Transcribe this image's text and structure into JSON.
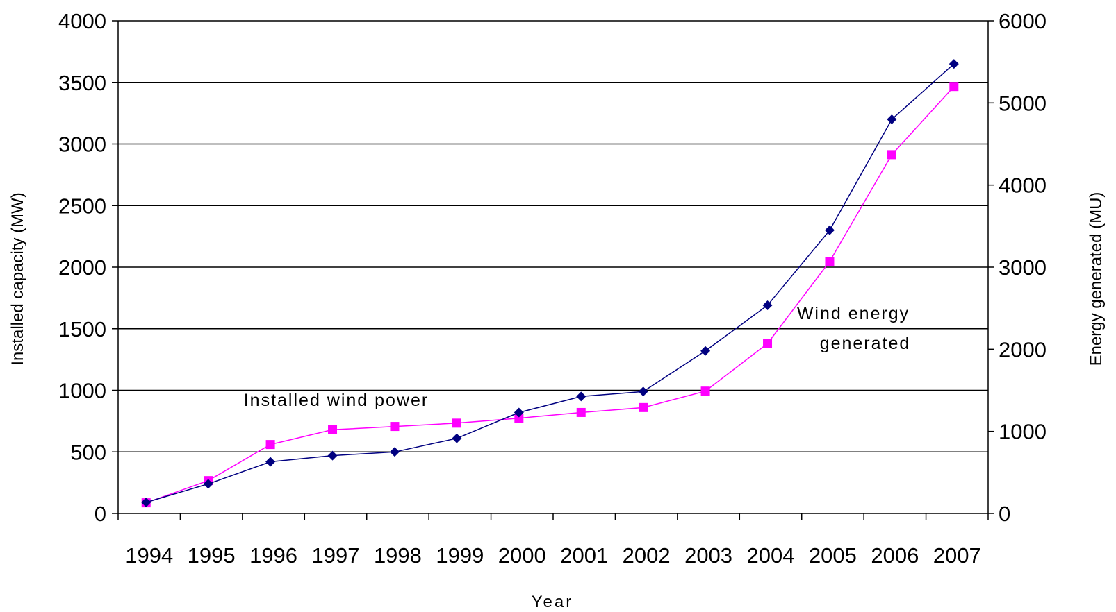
{
  "chart_data": {
    "type": "line",
    "categories": [
      "1994",
      "1995",
      "1996",
      "1997",
      "1998",
      "1999",
      "2000",
      "2001",
      "2002",
      "2003",
      "2004",
      "2005",
      "2006",
      "2007"
    ],
    "series": [
      {
        "name": "Installed wind power",
        "axis": "left",
        "color": "#000080",
        "marker": "diamond",
        "values": [
          90,
          240,
          420,
          470,
          500,
          610,
          820,
          950,
          990,
          1320,
          1690,
          2300,
          3200,
          3650
        ]
      },
      {
        "name": "Wind energy generated",
        "axis": "right",
        "color": "#ff00ff",
        "marker": "square",
        "values": [
          130,
          400,
          840,
          1020,
          1060,
          1100,
          1160,
          1230,
          1290,
          1490,
          2070,
          3070,
          4370,
          5200
        ]
      }
    ],
    "xlabel": "Year",
    "ylabel_left": "Installed capacity (MW)",
    "ylabel_right": "Energy generated (MU)",
    "ylim_left": [
      0,
      4000
    ],
    "ylim_right": [
      0,
      6000
    ],
    "yticks_left": [
      "0",
      "500",
      "1000",
      "1500",
      "2000",
      "2500",
      "3000",
      "3500",
      "4000"
    ],
    "yticks_right": [
      "0",
      "1000",
      "2000",
      "3000",
      "4000",
      "5000",
      "6000"
    ],
    "grid": true,
    "annotations": [
      {
        "series": 0,
        "lines": [
          "Installed wind power"
        ]
      },
      {
        "series": 1,
        "lines": [
          "Wind energy",
          "generated"
        ]
      }
    ]
  }
}
